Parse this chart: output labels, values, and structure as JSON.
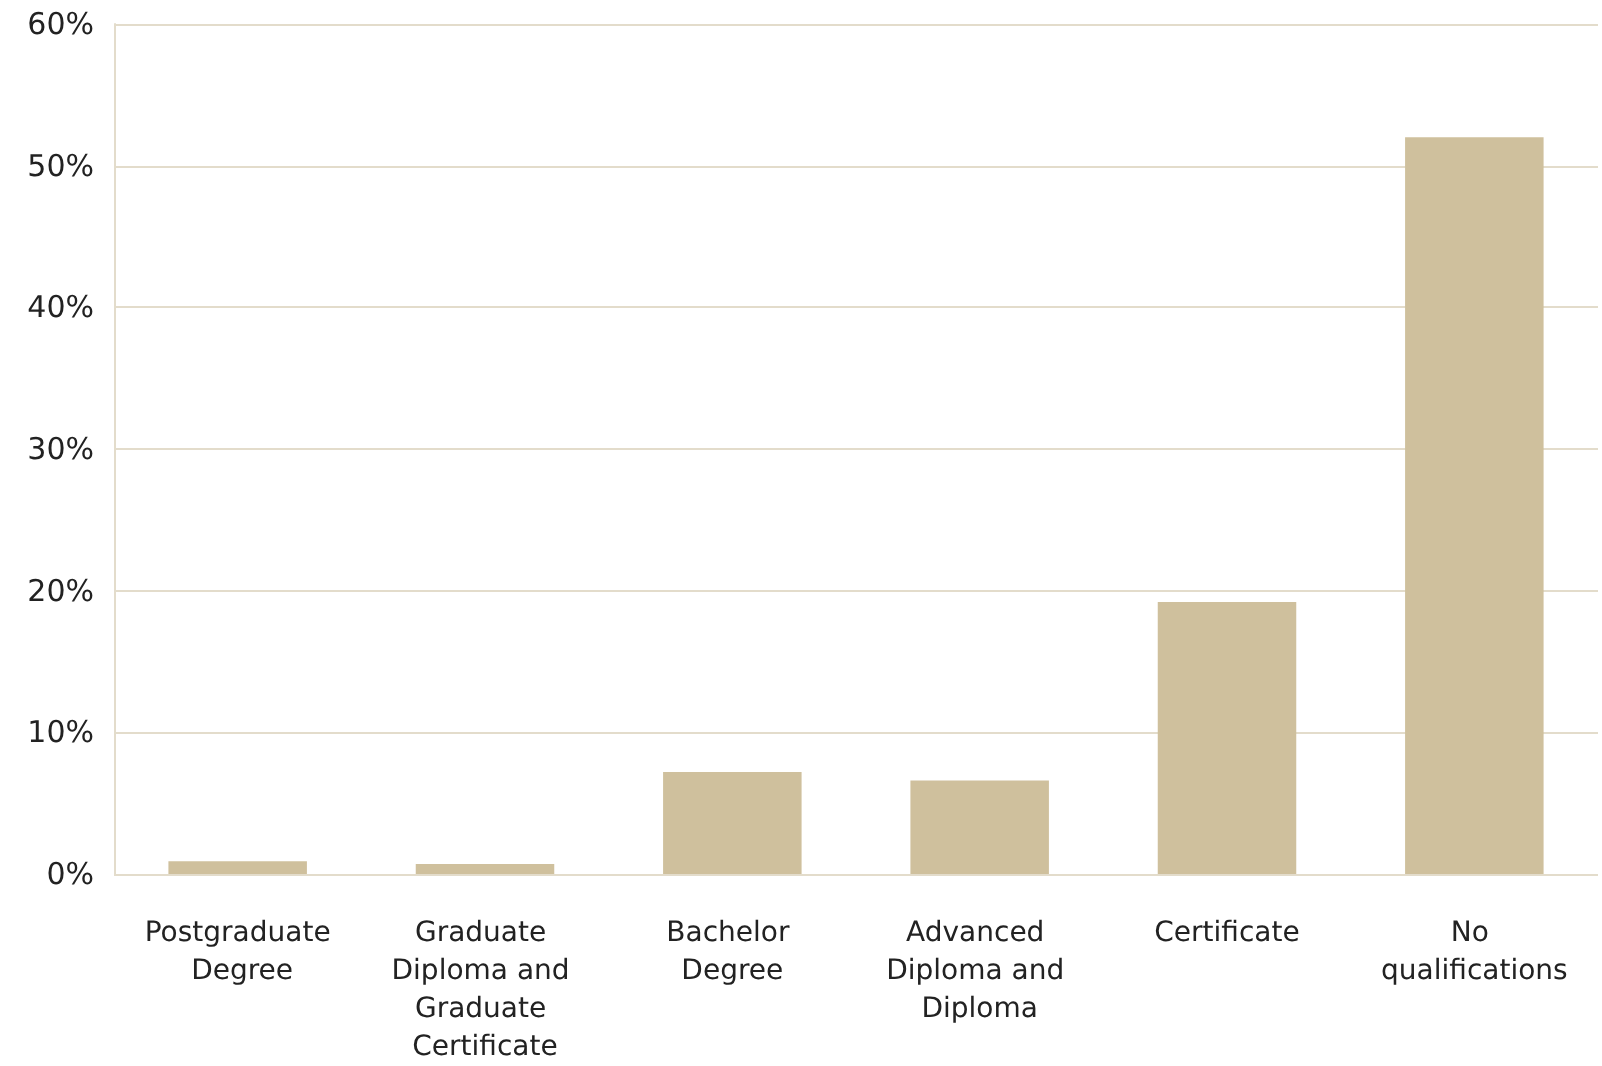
{
  "chart_data": {
    "type": "bar",
    "categories": [
      "Postgraduate Degree",
      "Graduate Diploma and Graduate Certificate",
      "Bachelor Degree",
      "Advanced Diploma and Diploma",
      "Certificate",
      "No qualifications"
    ],
    "values": [
      0.9,
      0.7,
      7.2,
      6.6,
      19.2,
      52
    ],
    "color": "#cfc09d",
    "ylim": [
      0,
      60
    ],
    "yticks": [
      {
        "value": 0,
        "label": "0%"
      },
      {
        "value": 10,
        "label": "10%"
      },
      {
        "value": 20,
        "label": "20%"
      },
      {
        "value": 30,
        "label": "30%"
      },
      {
        "value": 40,
        "label": "40%"
      },
      {
        "value": 50,
        "label": "50%"
      },
      {
        "value": 60,
        "label": "60%"
      }
    ],
    "grid": "y"
  }
}
